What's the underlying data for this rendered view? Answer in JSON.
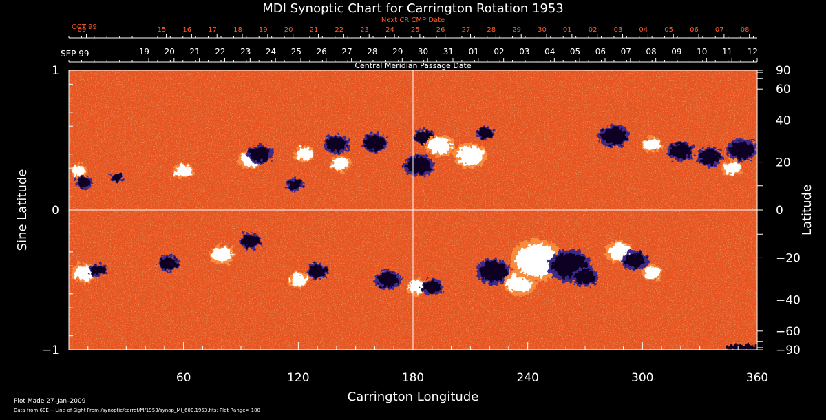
{
  "chart_data": {
    "type": "heatmap",
    "title": "MDI Synoptic Chart for Carrington Rotation 1953",
    "xlabel": "Carrington Longitude",
    "ylabel": "Sine Latitude",
    "y2label": "Latitude",
    "xlim": [
      0,
      360
    ],
    "ylim": [
      -1,
      1
    ],
    "x_ticks": [
      60,
      120,
      180,
      240,
      300,
      360
    ],
    "y_ticks": [
      {
        "value": 1,
        "label": "1"
      },
      {
        "value": 0,
        "label": "0"
      },
      {
        "value": -1,
        "label": "−1"
      }
    ],
    "y2_ticks": [
      90,
      60,
      40,
      20,
      0,
      -20,
      -40,
      -60,
      -90
    ],
    "y2_tick_labels": [
      "90",
      "60",
      "40",
      "20",
      "0",
      "−20",
      "−40",
      "−60",
      "−90"
    ],
    "colors": {
      "background": "#000000",
      "frame": "#ffffff",
      "base": "#e8501c",
      "base_dark": "#b8290c",
      "base_light": "#f98b3c",
      "positive": "#ffffff",
      "negative": "#0a0420",
      "negative_rim": "#3c2a8a",
      "accent_text": "#ff5a28"
    },
    "dates_top": {
      "axis_title": "Next CR CMP Date",
      "month_label": "OCT 99",
      "labels": [
        "09",
        "08",
        "07",
        "06",
        "05",
        "04",
        "03",
        "02",
        "01",
        "30",
        "29",
        "28",
        "27",
        "26",
        "25",
        "24",
        "23",
        "22",
        "21",
        "20",
        "19",
        "18",
        "17",
        "16",
        "15"
      ],
      "start_x": 9.2,
      "step": -13.26
    },
    "dates_bottom": {
      "axis_title": "Central Meridian Passage Date",
      "month_label": "SEP 99",
      "labels": [
        "12",
        "11",
        "10",
        "09",
        "08",
        "07",
        "06",
        "05",
        "04",
        "03",
        "02",
        "01",
        "31",
        "30",
        "29",
        "28",
        "27",
        "26",
        "25",
        "24",
        "23",
        "22",
        "21",
        "20",
        "19"
      ],
      "start_x": 0,
      "step": -13.26
    },
    "regions": [
      {
        "lon": 5,
        "slat": 0.28,
        "r": 4,
        "polarity": "positive"
      },
      {
        "lon": 8,
        "slat": 0.2,
        "r": 4,
        "polarity": "negative"
      },
      {
        "lon": 25,
        "slat": 0.23,
        "r": 3,
        "polarity": "negative"
      },
      {
        "lon": 60,
        "slat": 0.28,
        "r": 5,
        "polarity": "positive"
      },
      {
        "lon": 95,
        "slat": 0.36,
        "r": 6,
        "polarity": "positive"
      },
      {
        "lon": 100,
        "slat": 0.4,
        "r": 6,
        "polarity": "negative"
      },
      {
        "lon": 118,
        "slat": 0.18,
        "r": 4,
        "polarity": "negative"
      },
      {
        "lon": 123,
        "slat": 0.4,
        "r": 5,
        "polarity": "positive"
      },
      {
        "lon": 140,
        "slat": 0.47,
        "r": 6,
        "polarity": "negative"
      },
      {
        "lon": 142,
        "slat": 0.33,
        "r": 5,
        "polarity": "positive"
      },
      {
        "lon": 160,
        "slat": 0.48,
        "r": 6,
        "polarity": "negative"
      },
      {
        "lon": 183,
        "slat": 0.32,
        "r": 7,
        "polarity": "negative"
      },
      {
        "lon": 186,
        "slat": 0.52,
        "r": 5,
        "polarity": "negative"
      },
      {
        "lon": 194,
        "slat": 0.46,
        "r": 7,
        "polarity": "positive"
      },
      {
        "lon": 210,
        "slat": 0.39,
        "r": 8,
        "polarity": "positive"
      },
      {
        "lon": 218,
        "slat": 0.55,
        "r": 4,
        "polarity": "negative"
      },
      {
        "lon": 285,
        "slat": 0.53,
        "r": 7,
        "polarity": "negative"
      },
      {
        "lon": 305,
        "slat": 0.47,
        "r": 5,
        "polarity": "positive"
      },
      {
        "lon": 320,
        "slat": 0.42,
        "r": 6,
        "polarity": "negative"
      },
      {
        "lon": 335,
        "slat": 0.38,
        "r": 6,
        "polarity": "negative"
      },
      {
        "lon": 347,
        "slat": 0.3,
        "r": 5,
        "polarity": "positive"
      },
      {
        "lon": 352,
        "slat": 0.43,
        "r": 7,
        "polarity": "negative"
      },
      {
        "lon": 8,
        "slat": -0.45,
        "r": 6,
        "polarity": "positive"
      },
      {
        "lon": 15,
        "slat": -0.43,
        "r": 4,
        "polarity": "negative"
      },
      {
        "lon": 52,
        "slat": -0.38,
        "r": 5,
        "polarity": "negative"
      },
      {
        "lon": 80,
        "slat": -0.32,
        "r": 6,
        "polarity": "positive"
      },
      {
        "lon": 95,
        "slat": -0.22,
        "r": 5,
        "polarity": "negative"
      },
      {
        "lon": 120,
        "slat": -0.5,
        "r": 5,
        "polarity": "positive"
      },
      {
        "lon": 130,
        "slat": -0.44,
        "r": 5,
        "polarity": "negative"
      },
      {
        "lon": 167,
        "slat": -0.5,
        "r": 6,
        "polarity": "negative"
      },
      {
        "lon": 182,
        "slat": -0.55,
        "r": 5,
        "polarity": "positive"
      },
      {
        "lon": 190,
        "slat": -0.55,
        "r": 5,
        "polarity": "negative"
      },
      {
        "lon": 222,
        "slat": -0.44,
        "r": 8,
        "polarity": "negative"
      },
      {
        "lon": 236,
        "slat": -0.52,
        "r": 8,
        "polarity": "positive"
      },
      {
        "lon": 245,
        "slat": -0.36,
        "r": 13,
        "polarity": "positive"
      },
      {
        "lon": 262,
        "slat": -0.4,
        "r": 10,
        "polarity": "negative"
      },
      {
        "lon": 270,
        "slat": -0.48,
        "r": 6,
        "polarity": "negative"
      },
      {
        "lon": 288,
        "slat": -0.3,
        "r": 7,
        "polarity": "positive"
      },
      {
        "lon": 296,
        "slat": -0.36,
        "r": 6,
        "polarity": "negative"
      },
      {
        "lon": 305,
        "slat": -0.45,
        "r": 5,
        "polarity": "positive"
      }
    ]
  },
  "footer": {
    "line1": "Plot Made 27–Jan–2009",
    "line2": "Data from 60E -- Line-of-Sight From /synoptic/carrot/M/1953/synop_Ml_60E.1953.fits; Plot Range=  100"
  }
}
